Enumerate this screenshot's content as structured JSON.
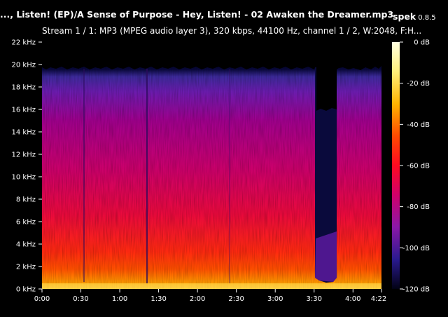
{
  "window": {
    "title": "..., Listen! (EP)/A Sense of Purpose - Hey, Listen! - 02 Awaken the Dreamer.mp3",
    "app_name": "spek",
    "app_version": "0.8.5"
  },
  "stream_info": "Stream 1 / 1: MP3 (MPEG audio layer 3), 320 kbps, 44100 Hz, channel 1 / 2, W:2048, F:H...",
  "frequency_axis": {
    "labels": [
      "0 kHz",
      "2 kHz",
      "4 kHz",
      "6 kHz",
      "8 kHz",
      "10 kHz",
      "12 kHz",
      "14 kHz",
      "16 kHz",
      "18 kHz",
      "20 kHz",
      "22 kHz"
    ],
    "max_khz": 22
  },
  "time_axis": {
    "labels": [
      "0:00",
      "0:30",
      "1:00",
      "1:30",
      "2:00",
      "2:30",
      "3:00",
      "3:30",
      "4:00"
    ],
    "end_label": "4:22",
    "duration_seconds": 262
  },
  "db_scale": {
    "labels": [
      "0 dB",
      "-20 dB",
      "-40 dB",
      "-60 dB",
      "-80 dB",
      "-100 dB",
      "-120 dB"
    ],
    "max_db": 0,
    "min_db": -120
  },
  "palette": {
    "background": "#000000",
    "high": "#ffffe0",
    "upper": "#ffd000",
    "mid_high": "#ff2000",
    "mid": "#d0006a",
    "low": "#5a1a9e",
    "floor": "#08083a"
  }
}
